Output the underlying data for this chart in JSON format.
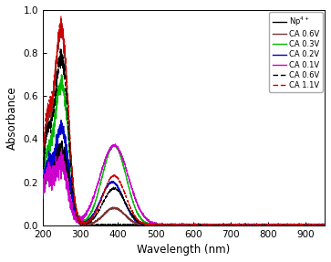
{
  "title": "",
  "xlabel": "Wavelength (nm)",
  "ylabel": "Absorbance",
  "xlim": [
    200,
    950
  ],
  "ylim": [
    0.0,
    1.0
  ],
  "xticks": [
    200,
    300,
    400,
    500,
    600,
    700,
    800,
    900
  ],
  "yticks": [
    0.0,
    0.2,
    0.4,
    0.6,
    0.8,
    1.0
  ],
  "colors": {
    "np4": "#000000",
    "ca06s": "#7B3535",
    "ca03": "#00BB00",
    "ca02": "#0000CC",
    "ca01": "#CC00CC",
    "ca06d": "#000000",
    "ca11": "#CC0000"
  },
  "figsize": [
    3.63,
    2.87
  ],
  "dpi": 100
}
